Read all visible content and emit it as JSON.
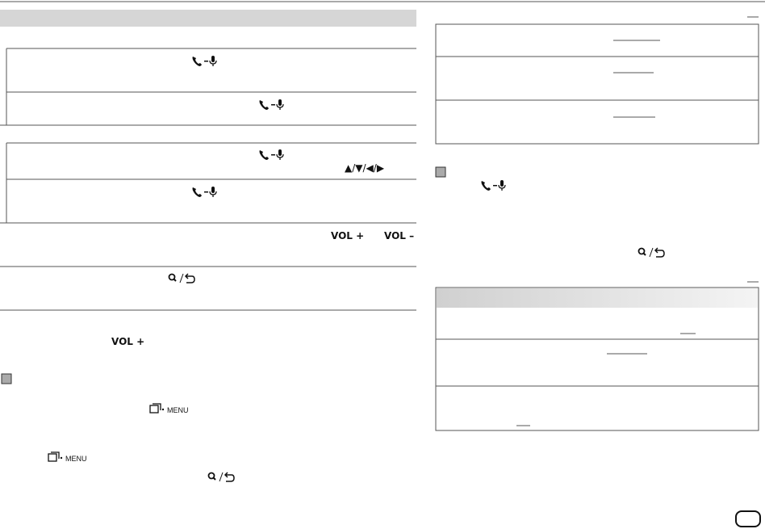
{
  "left": {
    "vol_plus_1": "VOL +",
    "vol_minus": "VOL –",
    "vol_plus_2": "VOL +",
    "menu_1": "MENU",
    "menu_2": "MENU",
    "arrows": "▲/▼/◀/▶"
  }
}
